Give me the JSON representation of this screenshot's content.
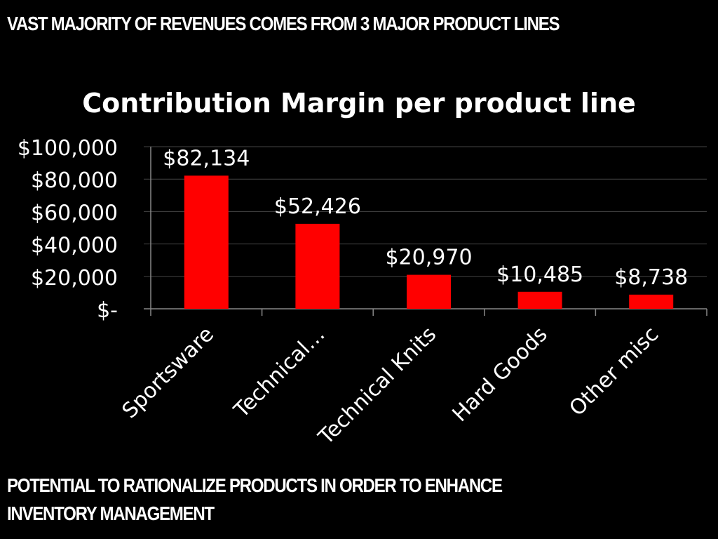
{
  "slide": {
    "headline": "VAST MAJORITY OF REVENUES COMES FROM 3 MAJOR PRODUCT LINES",
    "footer_line1": "POTENTIAL TO RATIONALIZE PRODUCTS IN ORDER TO ENHANCE",
    "footer_line2": "INVENTORY MANAGEMENT"
  },
  "chart_data": {
    "type": "bar",
    "title": "Contribution Margin per product line",
    "categories": [
      "Sportsware",
      "Technical…",
      "Technical Knits",
      "Hard Goods",
      "Other misc"
    ],
    "values": [
      82134,
      52426,
      20970,
      10485,
      8738
    ],
    "data_labels": [
      "$82,134",
      "$52,426",
      "$20,970",
      "$10,485",
      "$8,738"
    ],
    "y_ticks": [
      0,
      20000,
      40000,
      60000,
      80000,
      100000
    ],
    "y_tick_labels": [
      "$-",
      "$20,000",
      "$40,000",
      "$60,000",
      "$80,000",
      "$100,000"
    ],
    "ylim": [
      0,
      100000
    ],
    "grid": true,
    "legend": "none",
    "bar_color": "#ff0000",
    "background": "#000000",
    "text_color": "#ffffff",
    "grid_color": "#444444"
  }
}
